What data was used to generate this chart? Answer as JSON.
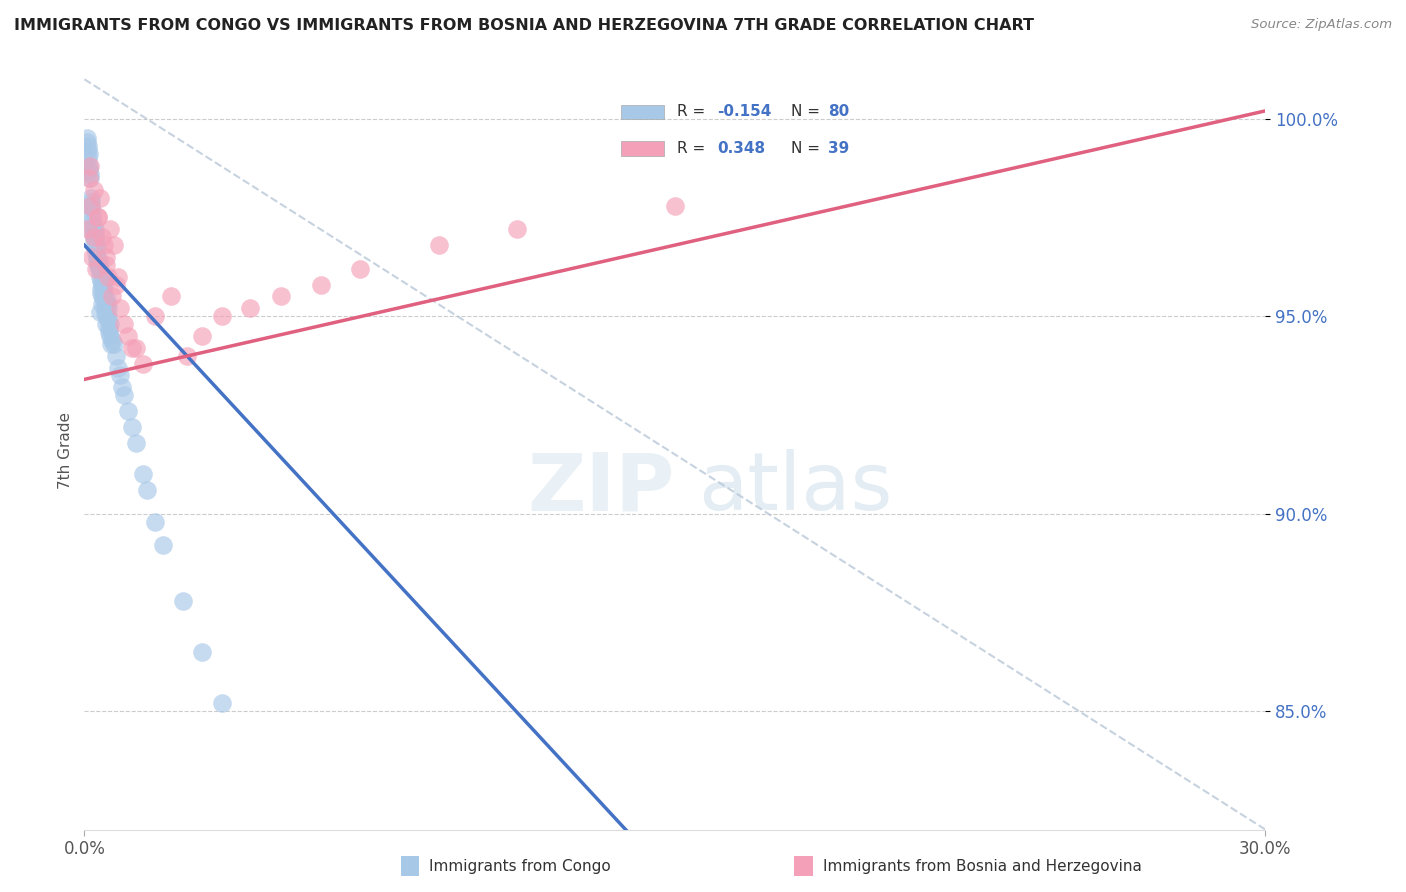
{
  "title": "IMMIGRANTS FROM CONGO VS IMMIGRANTS FROM BOSNIA AND HERZEGOVINA 7TH GRADE CORRELATION CHART",
  "source": "Source: ZipAtlas.com",
  "ylabel": "7th Grade",
  "xlim": [
    0.0,
    0.3
  ],
  "ylim": [
    0.82,
    1.012
  ],
  "ytick_positions": [
    0.85,
    0.9,
    0.95,
    1.0
  ],
  "ytick_labels": [
    "85.0%",
    "90.0%",
    "95.0%",
    "100.0%"
  ],
  "xtick_positions": [
    0.0,
    0.3
  ],
  "xtick_labels": [
    "0.0%",
    "30.0%"
  ],
  "legend_label1": "Immigrants from Congo",
  "legend_label2": "Immigrants from Bosnia and Herzegovina",
  "r1": "-0.154",
  "n1": "80",
  "r2": "0.348",
  "n2": "39",
  "color_blue": "#a8c8e8",
  "color_blue_line": "#4472c4",
  "color_pink": "#f4a0b8",
  "color_pink_line": "#e06080",
  "color_diag": "#b8c8d8",
  "background": "#ffffff",
  "blue_line_x": [
    0.0,
    0.17
  ],
  "blue_line_y": [
    0.968,
    0.785
  ],
  "pink_line_x": [
    0.0,
    0.3
  ],
  "pink_line_y": [
    0.934,
    1.002
  ],
  "diag_line_x": [
    0.0,
    0.3
  ],
  "diag_line_y": [
    1.01,
    0.82
  ],
  "congo_x": [
    0.001,
    0.0012,
    0.0008,
    0.0015,
    0.0009,
    0.0011,
    0.0013,
    0.0007,
    0.0006,
    0.0014,
    0.002,
    0.0018,
    0.0022,
    0.0016,
    0.0025,
    0.0019,
    0.0021,
    0.0017,
    0.0023,
    0.0024,
    0.003,
    0.0028,
    0.0032,
    0.0026,
    0.0035,
    0.0029,
    0.0031,
    0.0027,
    0.0033,
    0.0036,
    0.004,
    0.0038,
    0.0042,
    0.0037,
    0.0045,
    0.0039,
    0.0041,
    0.0043,
    0.0044,
    0.0046,
    0.005,
    0.0048,
    0.0052,
    0.0047,
    0.0055,
    0.0049,
    0.0051,
    0.0053,
    0.0054,
    0.0056,
    0.006,
    0.0058,
    0.0062,
    0.0057,
    0.0065,
    0.0059,
    0.0061,
    0.0063,
    0.0064,
    0.0067,
    0.008,
    0.0075,
    0.0085,
    0.007,
    0.009,
    0.0095,
    0.01,
    0.011,
    0.012,
    0.013,
    0.015,
    0.016,
    0.018,
    0.02,
    0.025,
    0.03,
    0.035,
    0.004,
    0.003,
    0.002
  ],
  "congo_y": [
    0.99,
    0.988,
    0.992,
    0.985,
    0.993,
    0.991,
    0.987,
    0.994,
    0.995,
    0.986,
    0.975,
    0.978,
    0.972,
    0.98,
    0.97,
    0.977,
    0.973,
    0.979,
    0.971,
    0.969,
    0.968,
    0.97,
    0.965,
    0.972,
    0.963,
    0.969,
    0.967,
    0.971,
    0.964,
    0.962,
    0.96,
    0.963,
    0.957,
    0.964,
    0.955,
    0.962,
    0.959,
    0.956,
    0.958,
    0.953,
    0.955,
    0.958,
    0.952,
    0.959,
    0.95,
    0.957,
    0.954,
    0.951,
    0.953,
    0.948,
    0.95,
    0.953,
    0.947,
    0.954,
    0.945,
    0.952,
    0.949,
    0.946,
    0.948,
    0.943,
    0.94,
    0.943,
    0.937,
    0.944,
    0.935,
    0.932,
    0.93,
    0.926,
    0.922,
    0.918,
    0.91,
    0.906,
    0.898,
    0.892,
    0.878,
    0.865,
    0.852,
    0.951,
    0.966,
    0.974
  ],
  "bosnia_x": [
    0.0008,
    0.0012,
    0.0015,
    0.002,
    0.0025,
    0.003,
    0.0035,
    0.004,
    0.005,
    0.0055,
    0.006,
    0.007,
    0.008,
    0.009,
    0.01,
    0.011,
    0.013,
    0.015,
    0.018,
    0.022,
    0.026,
    0.03,
    0.035,
    0.042,
    0.05,
    0.06,
    0.07,
    0.09,
    0.11,
    0.15,
    0.0015,
    0.0025,
    0.0035,
    0.0045,
    0.0055,
    0.0065,
    0.0075,
    0.0085,
    0.012
  ],
  "bosnia_y": [
    0.972,
    0.985,
    0.978,
    0.965,
    0.97,
    0.962,
    0.975,
    0.98,
    0.968,
    0.963,
    0.96,
    0.955,
    0.958,
    0.952,
    0.948,
    0.945,
    0.942,
    0.938,
    0.95,
    0.955,
    0.94,
    0.945,
    0.95,
    0.952,
    0.955,
    0.958,
    0.962,
    0.968,
    0.972,
    0.978,
    0.988,
    0.982,
    0.975,
    0.97,
    0.965,
    0.972,
    0.968,
    0.96,
    0.942
  ]
}
